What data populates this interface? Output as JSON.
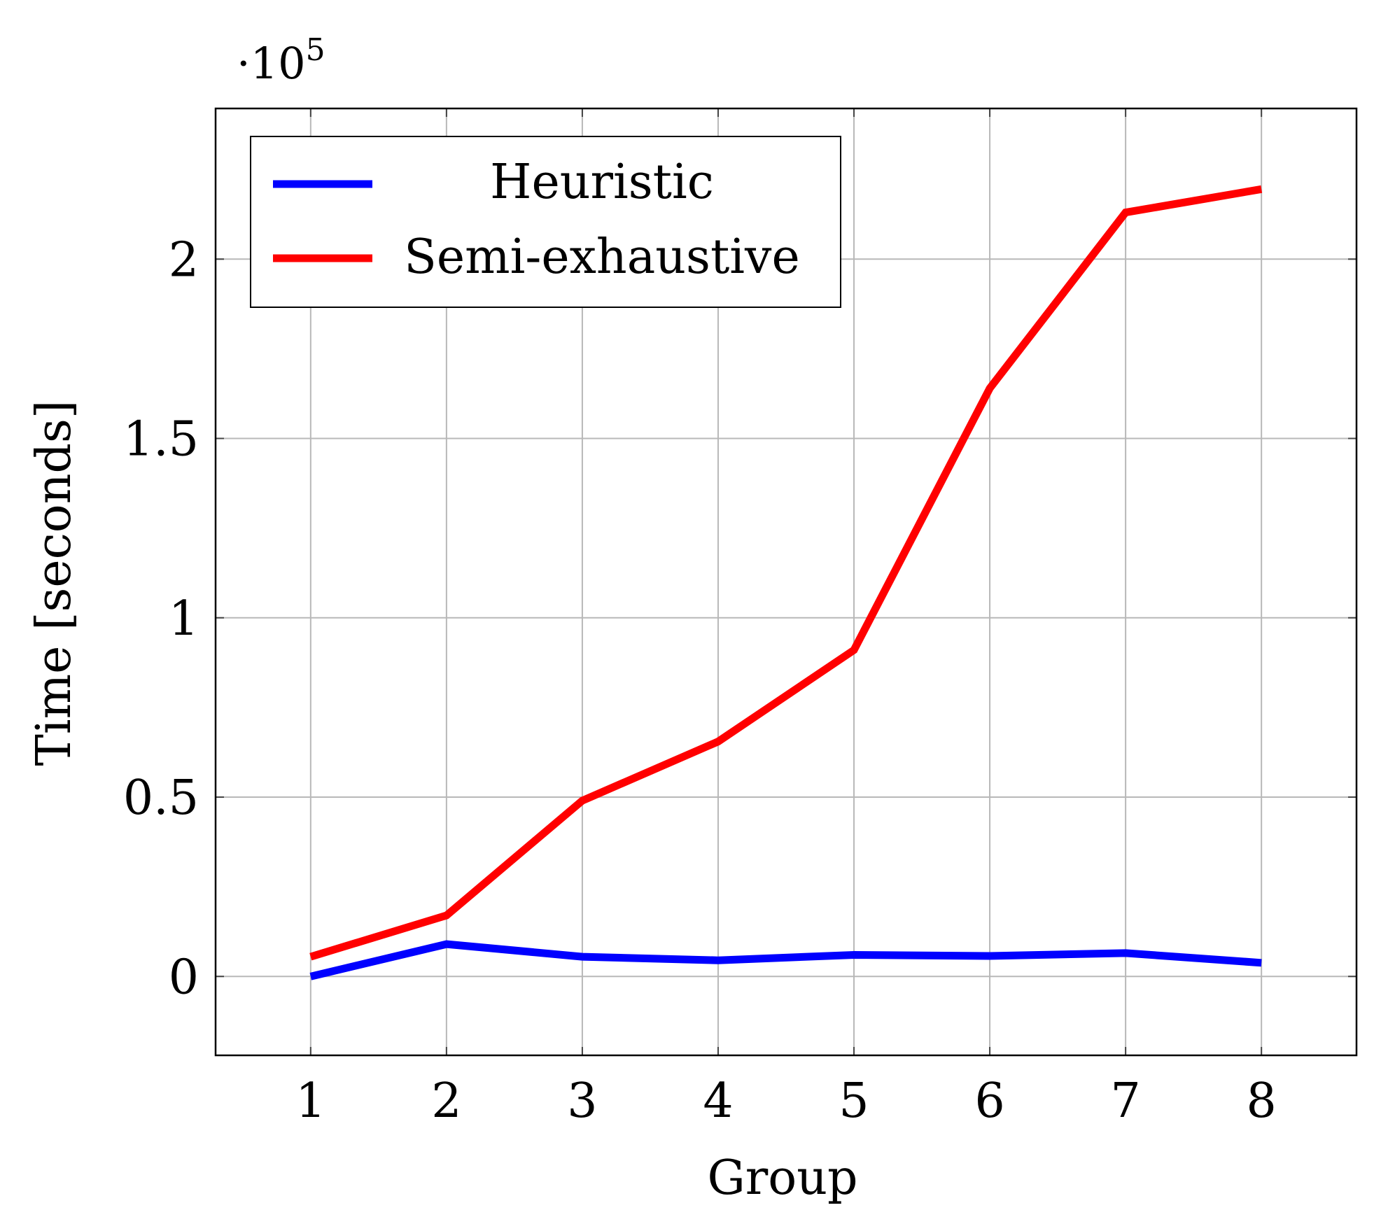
{
  "chart_data": {
    "type": "line",
    "xlabel": "Group",
    "ylabel": "Time [seconds]",
    "y_multiplier_label": {
      "prefix": "·10",
      "exponent": "5"
    },
    "x_ticks": [
      1,
      2,
      3,
      4,
      5,
      6,
      7,
      8
    ],
    "y_ticks": [
      {
        "value": 0,
        "label": "0"
      },
      {
        "value": 50000,
        "label": "0.5"
      },
      {
        "value": 100000,
        "label": "1"
      },
      {
        "value": 150000,
        "label": "1.5"
      },
      {
        "value": 200000,
        "label": "2"
      }
    ],
    "xlim": [
      0.3,
      8.7
    ],
    "ylim": [
      -22000,
      242000
    ],
    "grid": true,
    "legend_position": "top-left",
    "x": [
      1,
      2,
      3,
      4,
      5,
      6,
      7,
      8
    ],
    "series": [
      {
        "name": "Heuristic",
        "color": "#0000ff",
        "values": [
          0,
          9000,
          5500,
          4500,
          6000,
          5700,
          6500,
          3800
        ]
      },
      {
        "name": "Semi-exhaustive",
        "color": "#ff0000",
        "values": [
          5500,
          17000,
          49000,
          65500,
          91000,
          164000,
          213000,
          219500
        ]
      }
    ]
  }
}
